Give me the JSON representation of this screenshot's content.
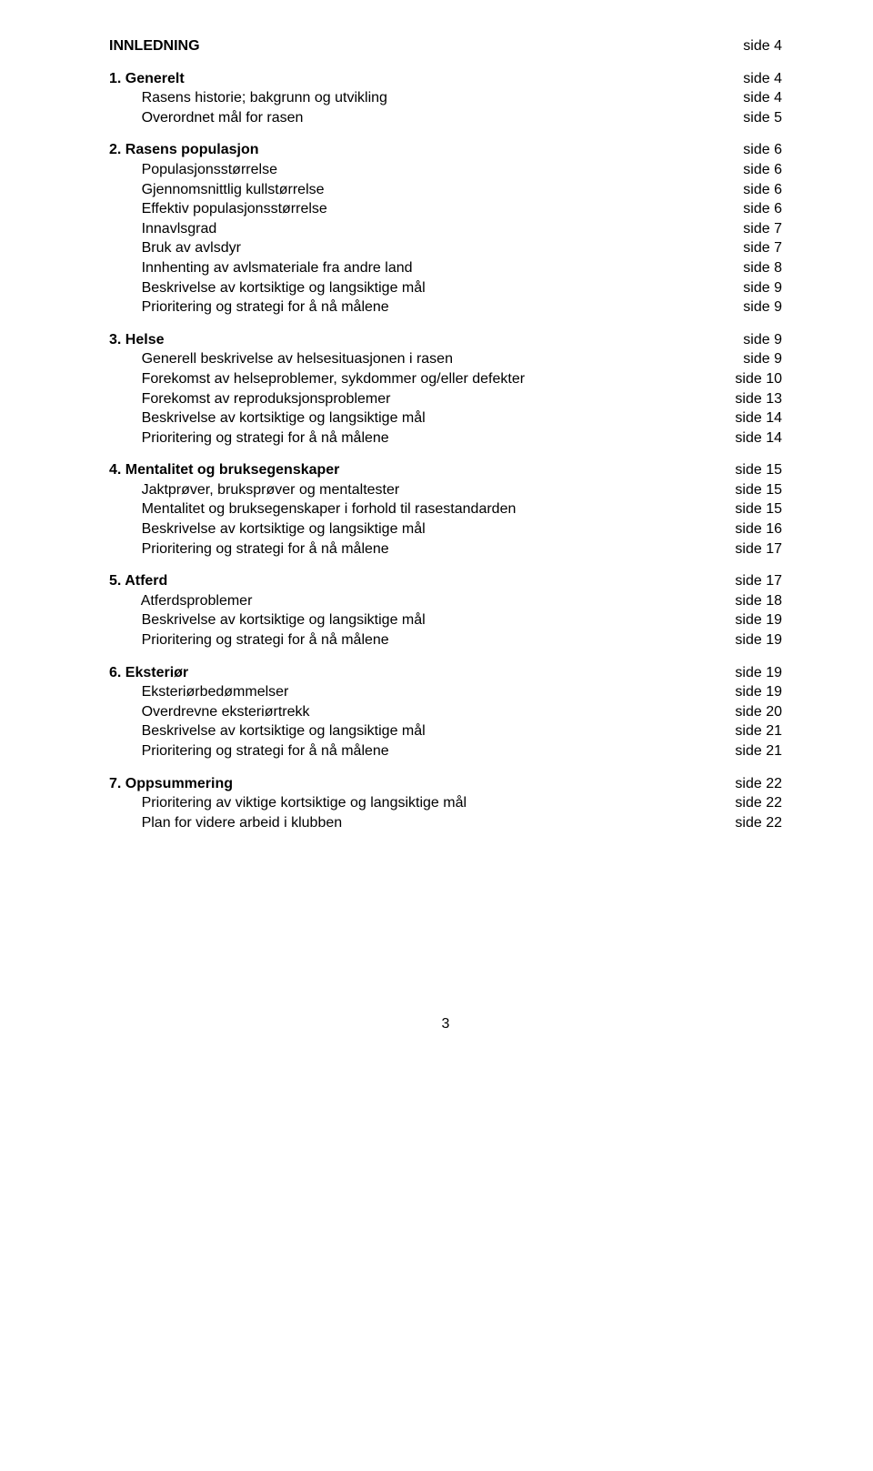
{
  "page_number": "3",
  "sections": [
    {
      "head": {
        "label": "INNLEDNING",
        "page": "side  4"
      },
      "items": []
    },
    {
      "head": {
        "label": "1. Generelt",
        "page": "side  4"
      },
      "items": [
        {
          "label": "Rasens historie; bakgrunn og utvikling",
          "page": "side  4"
        },
        {
          "label": "Overordnet mål for rasen",
          "page": "side  5"
        }
      ]
    },
    {
      "head": {
        "label": "2. Rasens populasjon",
        "page": "side  6"
      },
      "items": [
        {
          "label": "Populasjonsstørrelse",
          "page": "side  6"
        },
        {
          "label": "Gjennomsnittlig kullstørrelse",
          "page": "side  6"
        },
        {
          "label": "Effektiv populasjonsstørrelse",
          "page": "side  6"
        },
        {
          "label": "Innavlsgrad",
          "page": "side  7"
        },
        {
          "label": "Bruk av avlsdyr",
          "page": "side  7"
        },
        {
          "label": "Innhenting av avlsmateriale fra andre land",
          "page": "side  8"
        },
        {
          "label": "Beskrivelse av kortsiktige og langsiktige mål",
          "page": "side  9"
        },
        {
          "label": "Prioritering og strategi for å nå målene",
          "page": "side  9"
        }
      ]
    },
    {
      "head": {
        "label": "3. Helse",
        "page": "side  9"
      },
      "items": [
        {
          "label": "Generell beskrivelse av helsesituasjonen i rasen",
          "page": "side  9"
        },
        {
          "label": "Forekomst av helseproblemer, sykdommer og/eller defekter",
          "page": "side 10"
        },
        {
          "label": "Forekomst av reproduksjonsproblemer",
          "page": "side 13"
        },
        {
          "label": "Beskrivelse av kortsiktige og langsiktige mål",
          "page": "side 14"
        },
        {
          "label": "Prioritering og strategi for å nå målene",
          "page": "side 14"
        }
      ]
    },
    {
      "head": {
        "label": "4. Mentalitet og bruksegenskaper",
        "page": "side 15"
      },
      "items": [
        {
          "label": "Jaktprøver, bruksprøver og mentaltester",
          "page": "side 15"
        },
        {
          "label": "Mentalitet og bruksegenskaper i forhold til rasestandarden",
          "page": "side 15"
        },
        {
          "label": "Beskrivelse av kortsiktige og langsiktige mål",
          "page": "side 16"
        },
        {
          "label": "Prioritering og strategi for å nå målene",
          "page": "side 17"
        }
      ]
    },
    {
      "head": {
        "label": "5. Atferd",
        "page": "side 17"
      },
      "items": [
        {
          "label": "Atferdsproblemer",
          "page": "side 18"
        },
        {
          "label": "Beskrivelse av kortsiktige og langsiktige mål",
          "page": "side 19"
        },
        {
          "label": "Prioritering og strategi for å nå målene",
          "page": "side 19"
        }
      ]
    },
    {
      "head": {
        "label": "6. Eksteriør",
        "page": "side 19"
      },
      "items": [
        {
          "label": "Eksteriørbedømmelser",
          "page": "side 19"
        },
        {
          "label": "Overdrevne eksteriørtrekk",
          "page": "side 20"
        },
        {
          "label": "Beskrivelse av kortsiktige og langsiktige mål",
          "page": "side 21"
        },
        {
          "label": "Prioritering og strategi for å nå målene",
          "page": "side 21"
        }
      ]
    },
    {
      "head": {
        "label": "7. Oppsummering",
        "page": "side 22"
      },
      "items": [
        {
          "label": "Prioritering av viktige kortsiktige og langsiktige mål",
          "page": "side 22"
        },
        {
          "label": "Plan for videre arbeid i klubben",
          "page": "side 22"
        }
      ]
    }
  ]
}
